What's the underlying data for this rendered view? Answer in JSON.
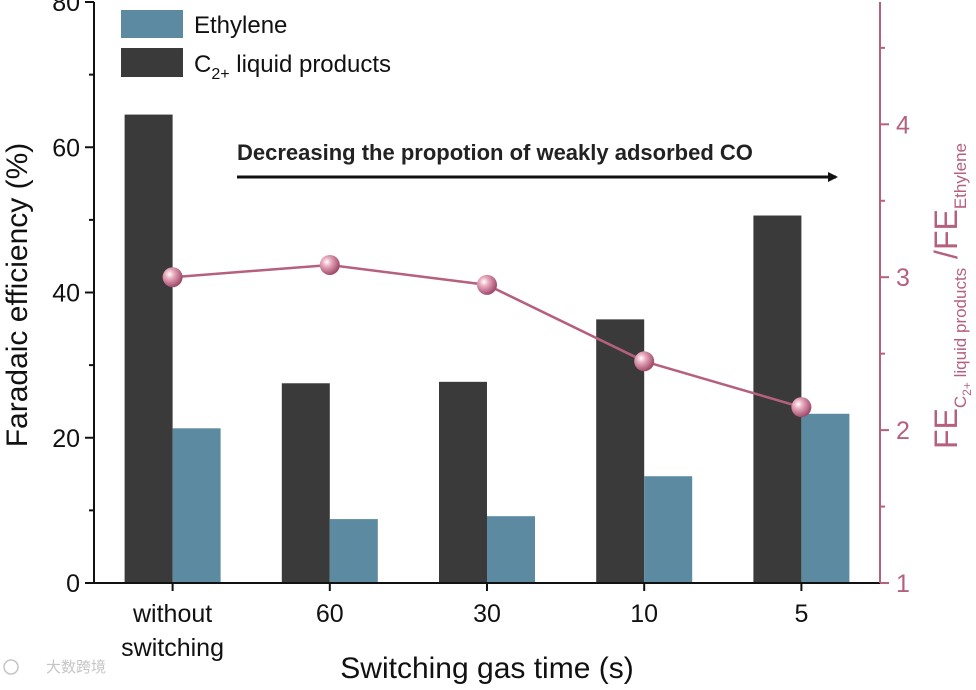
{
  "chart_data": {
    "type": "bar",
    "xlabel": "Switching gas time (s)",
    "ylabel": "Faradaic efficiency (%)",
    "ylabel_right": {
      "prefix": "FE",
      "sub1": "C",
      "sub1b": "2+",
      "sub1c": " liquid products",
      "mid": " /FE",
      "sub2": "Ethylene"
    },
    "categories": [
      [
        "without",
        "switching"
      ],
      [
        "60"
      ],
      [
        "30"
      ],
      [
        "10"
      ],
      [
        "5"
      ]
    ],
    "ylim": [
      0,
      80
    ],
    "yticks": [
      "0",
      "20",
      "40",
      "60",
      "80"
    ],
    "ylim_right": [
      1,
      4.8
    ],
    "yticks_right": [
      "1",
      "2",
      "3",
      "4"
    ],
    "series": [
      {
        "name": "C2+ liquid products",
        "legend_main": "C",
        "legend_sub": "2+",
        "legend_rest": " liquid products",
        "color": "#3a3a3a",
        "values": [
          64.5,
          27.5,
          27.7,
          36.3,
          50.6
        ]
      },
      {
        "name": "Ethylene",
        "legend_main": "Ethylene",
        "legend_sub": "",
        "legend_rest": "",
        "color": "#5b8aa1",
        "values": [
          21.3,
          8.8,
          9.2,
          14.7,
          23.3
        ]
      }
    ],
    "ratio": {
      "name": "FE ratio",
      "color": "#b5607e",
      "values": [
        3.0,
        3.08,
        2.95,
        2.45,
        2.15
      ]
    },
    "annotation": "Decreasing the propotion of weakly adsorbed CO",
    "legend_position": "top-left"
  },
  "watermark": "大数跨境",
  "watermark_icon": "camera-icon"
}
